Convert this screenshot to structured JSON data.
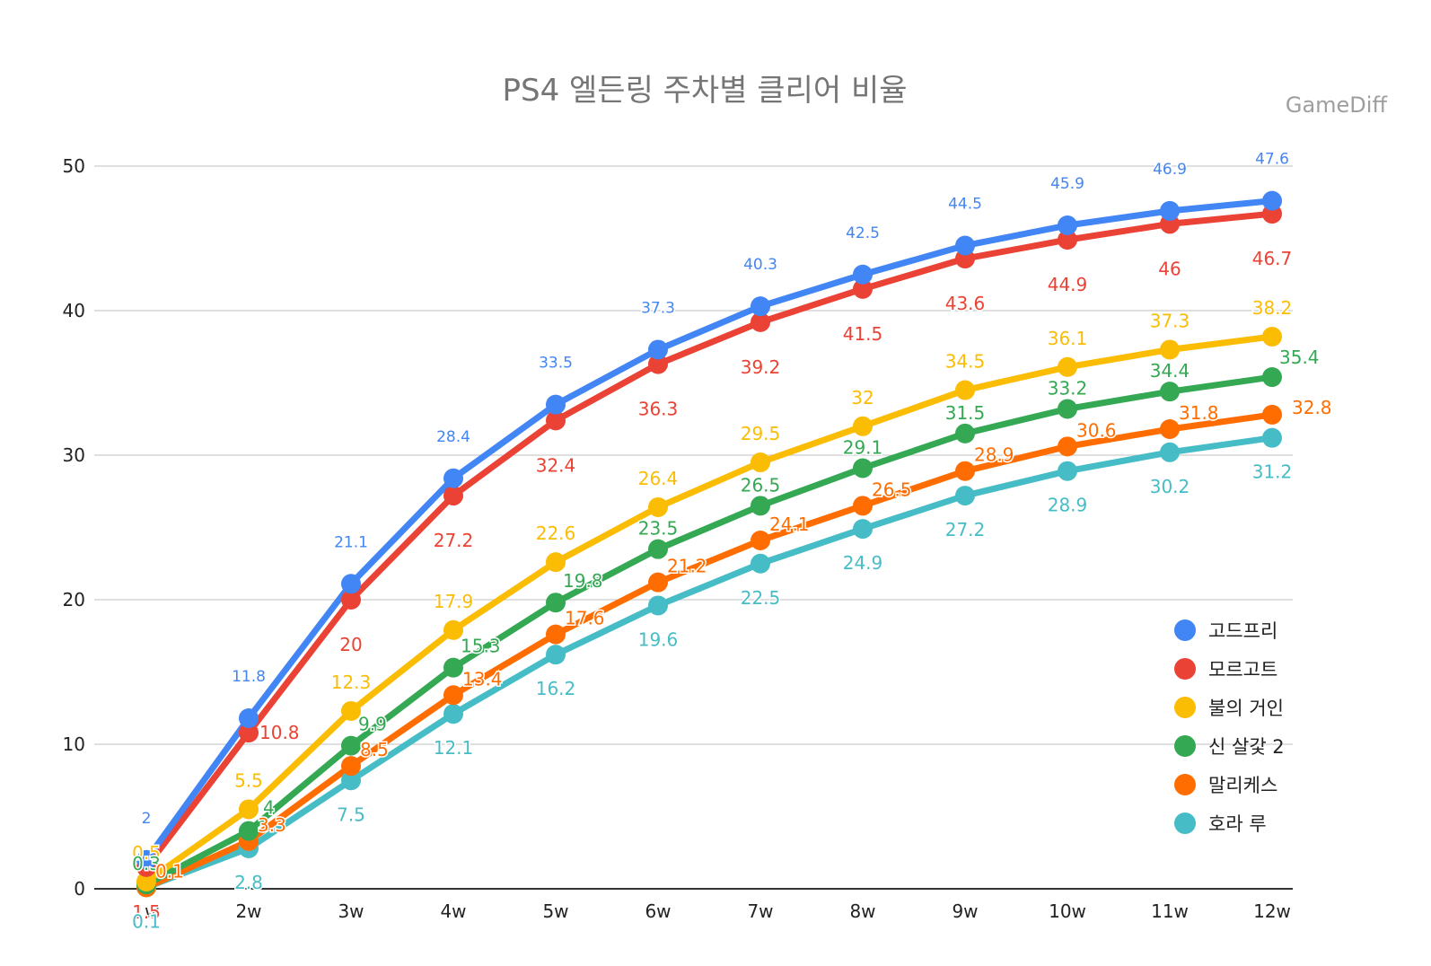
{
  "chart_data": {
    "type": "line",
    "title": "PS4 엘든링 주차별 클리어 비율",
    "source_label": "GameDiff",
    "xlabel": "",
    "ylabel": "",
    "categories": [
      "1w",
      "2w",
      "3w",
      "4w",
      "5w",
      "6w",
      "7w",
      "8w",
      "9w",
      "10w",
      "11w",
      "12w"
    ],
    "ylim": [
      0,
      50
    ],
    "yticks": [
      0,
      10,
      20,
      30,
      40,
      50
    ],
    "grid": true,
    "legend_position": "right",
    "series": [
      {
        "name": "고드프리",
        "color": "#4285F4",
        "values": [
          2.0,
          11.8,
          21.1,
          28.4,
          33.5,
          37.3,
          40.3,
          42.5,
          44.5,
          45.9,
          46.9,
          47.6
        ]
      },
      {
        "name": "모르고트",
        "color": "#EA4335",
        "values": [
          1.5,
          10.8,
          20,
          27.2,
          32.4,
          36.3,
          39.2,
          41.5,
          43.6,
          44.9,
          46,
          46.7
        ]
      },
      {
        "name": "불의 거인",
        "color": "#FBBC04",
        "values": [
          0.5,
          5.5,
          12.3,
          17.9,
          22.6,
          26.4,
          29.5,
          32,
          34.5,
          36.1,
          37.3,
          38.2
        ]
      },
      {
        "name": "신 살갗 2",
        "color": "#34A853",
        "values": [
          0.3,
          4,
          9.9,
          15.3,
          19.8,
          23.5,
          26.5,
          29.1,
          31.5,
          33.2,
          34.4,
          35.4
        ]
      },
      {
        "name": "말리케스",
        "color": "#FF6D01",
        "values": [
          0.1,
          3.3,
          8.5,
          13.4,
          17.6,
          21.2,
          24.1,
          26.5,
          28.9,
          30.6,
          31.8,
          32.8
        ]
      },
      {
        "name": "호라 루",
        "color": "#46BDC6",
        "values": [
          0.1,
          2.8,
          7.5,
          12.1,
          16.2,
          19.6,
          22.5,
          24.9,
          27.2,
          28.9,
          30.2,
          31.2
        ]
      }
    ]
  }
}
